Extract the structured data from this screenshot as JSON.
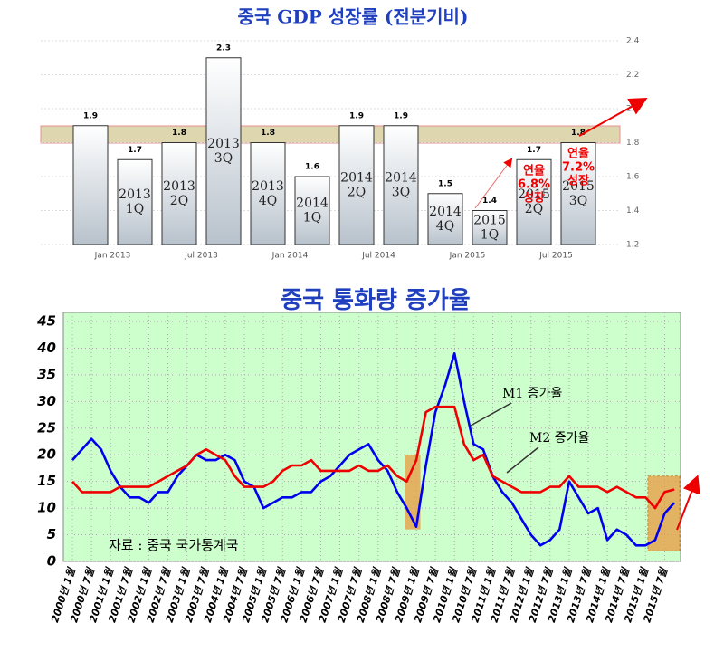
{
  "chart_data": [
    {
      "type": "bar",
      "title": "중국 GDP 성장률 (전분기비)",
      "categories": [
        null,
        "2013 1Q",
        "2013 2Q",
        "2013 3Q",
        "2013 4Q",
        "2014 1Q",
        "2014 2Q",
        "2014 3Q",
        "2014 4Q",
        "2015 1Q",
        "2015 2Q",
        "2015 3Q"
      ],
      "values": [
        1.9,
        1.7,
        1.8,
        2.3,
        1.8,
        1.6,
        1.9,
        1.9,
        1.5,
        1.4,
        1.7,
        1.8
      ],
      "x_labels": [
        "Jan 2013",
        "Jul 2013",
        "Jan 2014",
        "Jul 2014",
        "Jan 2015",
        "Jul 2015"
      ],
      "ylim": [
        1.2,
        2.4
      ],
      "yticks": [
        1.2,
        1.4,
        1.6,
        1.8,
        2.0,
        2.2,
        2.4
      ],
      "grid": true,
      "color": "#b8c2cc",
      "annotations": [
        {
          "bar": 10,
          "lines": [
            "연율",
            "6.8%",
            "성장"
          ]
        },
        {
          "bar": 11,
          "lines": [
            "연율",
            "7.2%",
            "성장"
          ]
        }
      ]
    },
    {
      "type": "line",
      "title": "중국 통화량 증가율",
      "categories": [
        "2000년 1월",
        null,
        "2000년 7월",
        null,
        "2001년 1월",
        null,
        "2001년 7월",
        null,
        "2002년 1월",
        null,
        "2002년 7월",
        null,
        "2003년 1월",
        null,
        "2003년 7월",
        null,
        "2004년 1월",
        null,
        "2004년 7월",
        null,
        "2005년 1월",
        null,
        "2005년 7월",
        null,
        "2006년 1월",
        null,
        "2006년 7월",
        null,
        "2007년 1월",
        null,
        "2007년 7월",
        null,
        "2008년 1월",
        null,
        "2008년 7월",
        null,
        "2009년 1월",
        null,
        "2009년 7월",
        null,
        "2010년 1월",
        null,
        "2010년 7월",
        null,
        "2011년 1월",
        null,
        "2011년 7월",
        null,
        "2012년 1월",
        null,
        "2012년 7월",
        null,
        "2013년 1월",
        null,
        "2013년 7월",
        null,
        "2014년 1월",
        null,
        "2014년 7월",
        null,
        "2015년 1월",
        null,
        "2015년 7월",
        null
      ],
      "series": [
        {
          "name": "M1 증가율",
          "color": "#0000ee",
          "values": [
            19,
            21,
            23,
            21,
            17,
            14,
            12,
            12,
            11,
            13,
            13,
            16,
            18,
            20,
            19,
            19,
            20,
            19,
            15,
            14,
            10,
            11,
            12,
            12,
            13,
            13,
            15,
            16,
            18,
            20,
            21,
            22,
            19,
            17,
            13,
            10,
            6.5,
            18,
            28,
            33,
            39,
            30,
            22,
            21,
            16,
            13,
            11,
            8,
            5,
            3,
            4,
            6,
            15,
            12,
            9,
            10,
            4,
            6,
            5,
            3,
            3,
            4,
            9,
            11
          ]
        },
        {
          "name": "M2 증가율",
          "color": "#ee0000",
          "values": [
            15,
            13,
            13,
            13,
            13,
            14,
            14,
            14,
            14,
            15,
            16,
            17,
            18,
            20,
            21,
            20,
            19,
            16,
            14,
            14,
            14,
            15,
            17,
            18,
            18,
            19,
            17,
            17,
            17,
            17,
            18,
            17,
            17,
            18,
            16,
            15,
            19,
            28,
            29,
            29,
            29,
            22,
            19,
            20,
            16,
            15,
            14,
            13,
            13,
            13,
            14,
            14,
            16,
            14,
            14,
            14,
            13,
            14,
            13,
            12,
            12,
            10,
            13,
            13.5
          ]
        }
      ],
      "ylim": [
        0,
        45
      ],
      "yticks": [
        0,
        5,
        10,
        15,
        20,
        25,
        30,
        35,
        40,
        45
      ],
      "grid": true,
      "source": "자료 : 중국 국가통계국"
    }
  ]
}
